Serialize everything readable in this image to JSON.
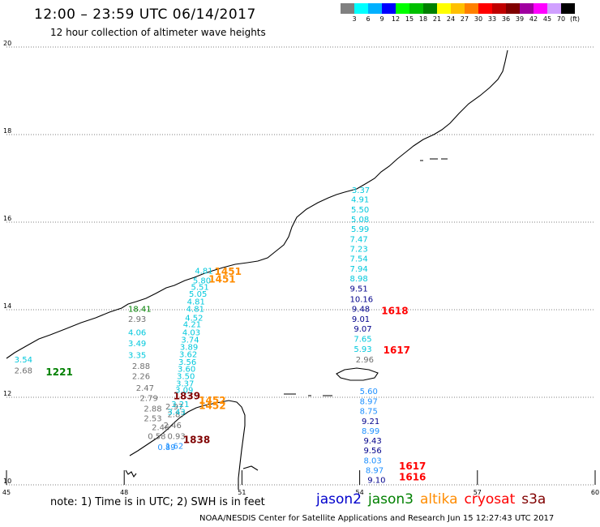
{
  "title": "12:00 – 23:59 UTC 06/14/2017",
  "subtitle": "12 hour collection of altimeter wave heights",
  "legend": {
    "colors": [
      "#808080",
      "#00ffff",
      "#00b0ff",
      "#0000ff",
      "#00ff00",
      "#00c000",
      "#008000",
      "#ffff00",
      "#ffc000",
      "#ff8000",
      "#ff0000",
      "#c00000",
      "#800000",
      "#a000a0",
      "#ff00ff",
      "#d0a0ff",
      "#000000"
    ],
    "labels": [
      "3",
      "6",
      "9",
      "12",
      "15",
      "18",
      "21",
      "24",
      "27",
      "30",
      "33",
      "36",
      "39",
      "42",
      "45",
      "70",
      "(ft)"
    ]
  },
  "axes": {
    "x_ticks": [
      "45",
      "48",
      "51",
      "54",
      "57",
      "60"
    ],
    "y_ticks": [
      "10",
      "12",
      "14",
      "16",
      "18",
      "20"
    ],
    "lon_range": [
      45,
      60
    ],
    "lat_range": [
      10,
      20
    ]
  },
  "colors": {
    "jason2": "#0000cc",
    "jason3": "#008000",
    "altika": "#ff8c00",
    "cryosat": "#ff0000",
    "s3a": "#800000",
    "cyan": "#00c8dc",
    "gray": "#707070",
    "navy": "#00008b",
    "steel": "#1e90ff"
  },
  "tracks": [
    {
      "time": "1221",
      "time_color": "green",
      "tlon": 46.0,
      "tlat": 12.5,
      "points": [
        {
          "lon": 45.2,
          "lat": 12.8,
          "v": "3.54",
          "c": "cyan"
        },
        {
          "lon": 45.2,
          "lat": 12.55,
          "v": "2.68",
          "c": "gray"
        }
      ]
    },
    {
      "time": "",
      "time_color": "green",
      "points": [
        {
          "lon": 48.1,
          "lat": 13.95,
          "v": "18.41",
          "c": "green"
        },
        {
          "lon": 48.1,
          "lat": 13.72,
          "v": "2.93",
          "c": "gray"
        },
        {
          "lon": 48.1,
          "lat": 13.42,
          "v": "4.06",
          "c": "cyan"
        },
        {
          "lon": 48.1,
          "lat": 13.17,
          "v": "3.49",
          "c": "cyan"
        },
        {
          "lon": 48.1,
          "lat": 12.9,
          "v": "3.35",
          "c": "cyan"
        },
        {
          "lon": 48.2,
          "lat": 12.65,
          "v": "2.88",
          "c": "gray"
        },
        {
          "lon": 48.2,
          "lat": 12.42,
          "v": "2.26",
          "c": "gray"
        },
        {
          "lon": 48.3,
          "lat": 12.15,
          "v": "2.47",
          "c": "gray"
        },
        {
          "lon": 48.4,
          "lat": 11.92,
          "v": "2.79",
          "c": "gray"
        },
        {
          "lon": 48.5,
          "lat": 11.68,
          "v": "2.88",
          "c": "gray"
        },
        {
          "lon": 48.5,
          "lat": 11.45,
          "v": "2.53",
          "c": "gray"
        },
        {
          "lon": 48.7,
          "lat": 11.25,
          "v": "2.46",
          "c": "gray"
        },
        {
          "lon": 48.6,
          "lat": 11.05,
          "v": "0.58",
          "c": "gray"
        },
        {
          "lon": 49.1,
          "lat": 11.05,
          "v": "0.93",
          "c": "gray"
        },
        {
          "lon": 49.1,
          "lat": 11.55,
          "v": "2.87",
          "c": "gray"
        },
        {
          "lon": 49.05,
          "lat": 11.72,
          "v": "2.97",
          "c": "gray"
        },
        {
          "lon": 49.0,
          "lat": 11.3,
          "v": "2.46",
          "c": "gray"
        },
        {
          "lon": 49.05,
          "lat": 10.82,
          "v": "1.62",
          "c": "steel"
        }
      ]
    },
    {
      "time": "1839",
      "time_color": "s3a",
      "tlon": 49.25,
      "tlat": 11.95,
      "points": []
    },
    {
      "time": "1838",
      "time_color": "s3a",
      "tlon": 49.5,
      "tlat": 10.95,
      "points": [
        {
          "lon": 48.85,
          "lat": 10.8,
          "v": "0.89",
          "c": "steel"
        }
      ]
    },
    {
      "time": "1451",
      "time_color": "altika",
      "tlon": 50.3,
      "tlat": 14.8,
      "points": []
    },
    {
      "time": "1451",
      "time_color": "altika",
      "tlon": 50.15,
      "tlat": 14.62,
      "points": [
        {
          "lon": 49.8,
          "lat": 14.82,
          "v": "4.81",
          "c": "cyan"
        },
        {
          "lon": 49.75,
          "lat": 14.6,
          "v": "5.80",
          "c": "cyan"
        },
        {
          "lon": 49.7,
          "lat": 14.45,
          "v": "5.51",
          "c": "cyan"
        },
        {
          "lon": 49.65,
          "lat": 14.3,
          "v": "5.05",
          "c": "cyan"
        },
        {
          "lon": 49.6,
          "lat": 14.12,
          "v": "4.81",
          "c": "cyan"
        },
        {
          "lon": 49.58,
          "lat": 13.95,
          "v": "4.81",
          "c": "cyan"
        },
        {
          "lon": 49.55,
          "lat": 13.75,
          "v": "4.52",
          "c": "cyan"
        },
        {
          "lon": 49.5,
          "lat": 13.6,
          "v": "4.21",
          "c": "cyan"
        },
        {
          "lon": 49.48,
          "lat": 13.42,
          "v": "4.03",
          "c": "cyan"
        },
        {
          "lon": 49.45,
          "lat": 13.25,
          "v": "3.74",
          "c": "cyan"
        },
        {
          "lon": 49.42,
          "lat": 13.08,
          "v": "3.89",
          "c": "cyan"
        },
        {
          "lon": 49.4,
          "lat": 12.92,
          "v": "3.62",
          "c": "cyan"
        },
        {
          "lon": 49.38,
          "lat": 12.74,
          "v": "3.56",
          "c": "cyan"
        },
        {
          "lon": 49.36,
          "lat": 12.58,
          "v": "3.60",
          "c": "cyan"
        },
        {
          "lon": 49.34,
          "lat": 12.42,
          "v": "3.50",
          "c": "cyan"
        },
        {
          "lon": 49.32,
          "lat": 12.25,
          "v": "3.37",
          "c": "cyan"
        },
        {
          "lon": 49.3,
          "lat": 12.1,
          "v": "3.09",
          "c": "cyan"
        },
        {
          "lon": 49.2,
          "lat": 11.78,
          "v": "3.21",
          "c": "cyan"
        },
        {
          "lon": 49.1,
          "lat": 11.6,
          "v": "3.43",
          "c": "cyan"
        }
      ]
    },
    {
      "time": "1452",
      "time_color": "altika",
      "tlon": 49.9,
      "tlat": 11.85,
      "points": []
    },
    {
      "time": "1452",
      "time_color": "altika",
      "tlon": 49.9,
      "tlat": 11.73,
      "points": []
    },
    {
      "time": "1618",
      "time_color": "cryosat",
      "tlon": 54.55,
      "tlat": 13.9,
      "points": [
        {
          "lon": 53.8,
          "lat": 16.67,
          "v": "3.37",
          "c": "cyan"
        },
        {
          "lon": 53.78,
          "lat": 16.45,
          "v": "4.91",
          "c": "cyan"
        },
        {
          "lon": 53.78,
          "lat": 16.22,
          "v": "5.50",
          "c": "cyan"
        },
        {
          "lon": 53.78,
          "lat": 16.0,
          "v": "5.08",
          "c": "cyan"
        },
        {
          "lon": 53.78,
          "lat": 15.78,
          "v": "5.99",
          "c": "cyan"
        },
        {
          "lon": 53.75,
          "lat": 15.55,
          "v": "7.47",
          "c": "cyan"
        },
        {
          "lon": 53.75,
          "lat": 15.32,
          "v": "7.23",
          "c": "cyan"
        },
        {
          "lon": 53.75,
          "lat": 15.1,
          "v": "7.54",
          "c": "cyan"
        },
        {
          "lon": 53.75,
          "lat": 14.87,
          "v": "7.94",
          "c": "cyan"
        },
        {
          "lon": 53.75,
          "lat": 14.65,
          "v": "8.98",
          "c": "cyan"
        },
        {
          "lon": 53.75,
          "lat": 14.42,
          "v": "9.51",
          "c": "navy"
        },
        {
          "lon": 53.75,
          "lat": 14.18,
          "v": "10.16",
          "c": "navy"
        },
        {
          "lon": 53.8,
          "lat": 13.95,
          "v": "9.48",
          "c": "navy"
        },
        {
          "lon": 53.8,
          "lat": 13.72,
          "v": "9.01",
          "c": "navy"
        },
        {
          "lon": 53.85,
          "lat": 13.5,
          "v": "9.07",
          "c": "navy"
        },
        {
          "lon": 53.85,
          "lat": 13.27,
          "v": "7.65",
          "c": "cyan"
        },
        {
          "lon": 53.85,
          "lat": 13.04,
          "v": "5.93",
          "c": "cyan"
        },
        {
          "lon": 53.9,
          "lat": 12.8,
          "v": "2.96",
          "c": "gray"
        }
      ]
    },
    {
      "time": "1617",
      "time_color": "cryosat",
      "tlon": 54.6,
      "tlat": 13.0,
      "points": []
    },
    {
      "time": "1617",
      "time_color": "cryosat",
      "tlon": 55.0,
      "tlat": 10.35,
      "points": [
        {
          "lon": 54.0,
          "lat": 12.07,
          "v": "5.60",
          "c": "steel"
        },
        {
          "lon": 54.0,
          "lat": 11.84,
          "v": "8.97",
          "c": "steel"
        },
        {
          "lon": 54.0,
          "lat": 11.62,
          "v": "8.75",
          "c": "steel"
        },
        {
          "lon": 54.05,
          "lat": 11.39,
          "v": "9.21",
          "c": "navy"
        },
        {
          "lon": 54.05,
          "lat": 11.17,
          "v": "8.99",
          "c": "steel"
        },
        {
          "lon": 54.1,
          "lat": 10.94,
          "v": "9.43",
          "c": "navy"
        },
        {
          "lon": 54.1,
          "lat": 10.72,
          "v": "9.56",
          "c": "navy"
        },
        {
          "lon": 54.1,
          "lat": 10.49,
          "v": "8.03",
          "c": "steel"
        },
        {
          "lon": 54.15,
          "lat": 10.27,
          "v": "8.97",
          "c": "steel"
        },
        {
          "lon": 54.2,
          "lat": 10.05,
          "v": "9.10",
          "c": "navy"
        }
      ]
    },
    {
      "time": "1616",
      "time_color": "cryosat",
      "tlon": 55.0,
      "tlat": 10.1,
      "points": []
    }
  ],
  "footer": {
    "note": "note: 1) Time is in UTC; 2) SWH is in feet",
    "satellites": [
      {
        "name": "jason2",
        "color": "#0000cc"
      },
      {
        "name": "jason3",
        "color": "#008000"
      },
      {
        "name": "altika",
        "color": "#ff8c00"
      },
      {
        "name": "cryosat",
        "color": "#ff0000"
      },
      {
        "name": "s3a",
        "color": "#800000"
      }
    ],
    "credit": "NOAA/NESDIS Center for Satellite Applications and Research   Jun 15 12:27:43 UTC 2017"
  }
}
